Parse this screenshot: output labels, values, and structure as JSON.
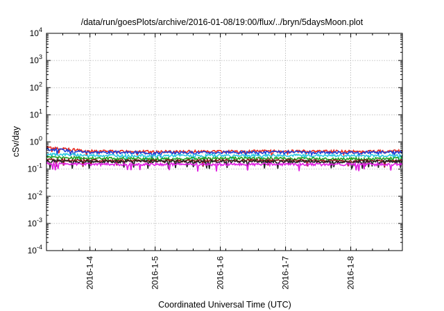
{
  "chart_data": {
    "type": "line",
    "title": "/data/run/goesPlots/archive/2016-01-08/19:00/flux/../bryn/5daysMoon.plot",
    "xlabel": "Coordinated Universal Time (UTC)",
    "ylabel": "cSv/day",
    "y_scale": "log",
    "ylim": [
      0.0001,
      10000
    ],
    "y_ticks": [
      {
        "base": "10",
        "exp": "-4",
        "value": 0.0001
      },
      {
        "base": "10",
        "exp": "-3",
        "value": 0.001
      },
      {
        "base": "10",
        "exp": "-2",
        "value": 0.01
      },
      {
        "base": "10",
        "exp": "-1",
        "value": 0.1
      },
      {
        "base": "10",
        "exp": "0",
        "value": 1
      },
      {
        "base": "10",
        "exp": "1",
        "value": 10
      },
      {
        "base": "10",
        "exp": "2",
        "value": 100
      },
      {
        "base": "10",
        "exp": "3",
        "value": 1000
      },
      {
        "base": "10",
        "exp": "4",
        "value": 10000
      }
    ],
    "xlim": [
      "2016-01-03 08:00",
      "2016-01-08 19:00"
    ],
    "x_ticks": [
      "2016-1-4",
      "2016-1-5",
      "2016-1-6",
      "2016-1-7",
      "2016-1-8"
    ],
    "grid": true,
    "series": [
      {
        "color": "#e8261c",
        "x": [
          "2016-01-03 08:00",
          "2016-01-04 00:00",
          "2016-01-05 00:00",
          "2016-01-06 00:00",
          "2016-01-07 00:00",
          "2016-01-08 00:00",
          "2016-01-08 19:00"
        ],
        "values": [
          0.62,
          0.46,
          0.44,
          0.45,
          0.46,
          0.45,
          0.46
        ]
      },
      {
        "color": "#1f3fd6",
        "x": [
          "2016-01-03 08:00",
          "2016-01-04 00:00",
          "2016-01-05 00:00",
          "2016-01-06 00:00",
          "2016-01-07 00:00",
          "2016-01-08 00:00",
          "2016-01-08 19:00"
        ],
        "values": [
          0.55,
          0.42,
          0.4,
          0.41,
          0.42,
          0.41,
          0.42
        ]
      },
      {
        "color": "#2bc8e0",
        "x": [
          "2016-01-03 08:00",
          "2016-01-04 00:00",
          "2016-01-05 00:00",
          "2016-01-06 00:00",
          "2016-01-07 00:00",
          "2016-01-08 00:00",
          "2016-01-08 19:00"
        ],
        "values": [
          0.36,
          0.32,
          0.31,
          0.32,
          0.32,
          0.31,
          0.32
        ]
      },
      {
        "color": "#20a020",
        "x": [
          "2016-01-03 08:00",
          "2016-01-04 00:00",
          "2016-01-05 00:00",
          "2016-01-06 00:00",
          "2016-01-07 00:00",
          "2016-01-08 00:00",
          "2016-01-08 19:00"
        ],
        "values": [
          0.28,
          0.25,
          0.24,
          0.25,
          0.25,
          0.24,
          0.25
        ]
      },
      {
        "color": "#8b1a1a",
        "x": [
          "2016-01-03 08:00",
          "2016-01-04 00:00",
          "2016-01-05 00:00",
          "2016-01-06 00:00",
          "2016-01-07 00:00",
          "2016-01-08 00:00",
          "2016-01-08 19:00"
        ],
        "values": [
          0.22,
          0.21,
          0.2,
          0.21,
          0.21,
          0.2,
          0.21
        ]
      },
      {
        "color": "#222222",
        "x": [
          "2016-01-03 08:00",
          "2016-01-04 00:00",
          "2016-01-05 00:00",
          "2016-01-06 00:00",
          "2016-01-07 00:00",
          "2016-01-08 00:00",
          "2016-01-08 19:00"
        ],
        "values": [
          0.2,
          0.19,
          0.19,
          0.19,
          0.19,
          0.19,
          0.19
        ]
      },
      {
        "color": "#e020e0",
        "x": [
          "2016-01-03 08:00",
          "2016-01-04 00:00",
          "2016-01-05 00:00",
          "2016-01-06 00:00",
          "2016-01-07 00:00",
          "2016-01-08 00:00",
          "2016-01-08 19:00"
        ],
        "values": [
          0.16,
          0.15,
          0.15,
          0.15,
          0.15,
          0.15,
          0.15
        ]
      }
    ]
  }
}
